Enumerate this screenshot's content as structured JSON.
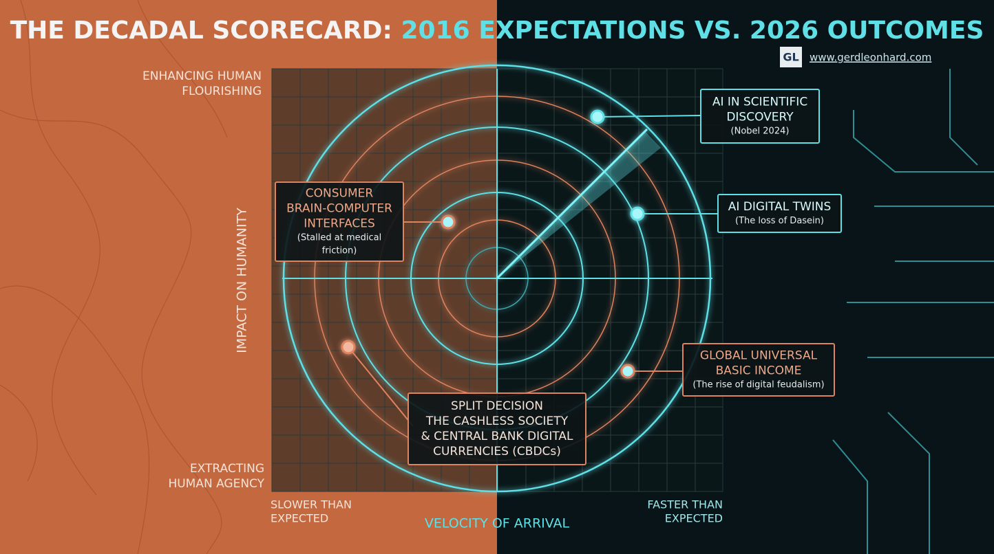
{
  "header": {
    "title_lead": "THE DECADAL SCORECARD:",
    "title_accent": "2016 EXPECTATIONS VS. 2026 OUTCOMES",
    "logo": "GL",
    "url": "www.gerdleonhard.com"
  },
  "axes": {
    "y_title": "IMPACT ON HUMANITY",
    "y_top": [
      "ENHANCING HUMAN",
      "FLOURISHING"
    ],
    "y_bottom": [
      "EXTRACTING",
      "HUMAN AGENCY"
    ],
    "x_title": "VELOCITY OF ARRIVAL",
    "x_left": [
      "SLOWER THAN",
      "EXPECTED"
    ],
    "x_right": [
      "FASTER THAN",
      "EXPECTED"
    ]
  },
  "nodes": [
    {
      "title": [
        "AI IN SCIENTIFIC",
        "DISCOVERY"
      ],
      "note": [
        "(Nobel 2024)"
      ]
    },
    {
      "title": [
        "AI DIGITAL TWINS"
      ],
      "note": [
        "(The loss of Dasein)"
      ]
    },
    {
      "title": [
        "CONSUMER",
        "BRAIN-COMPUTER",
        "INTERFACES"
      ],
      "note": [
        "(Stalled at medical",
        "friction)"
      ]
    },
    {
      "title": [
        "GLOBAL UNIVERSAL",
        "BASIC INCOME"
      ],
      "note": [
        "(The rise of digital feudalism)"
      ]
    },
    {
      "title": [
        "SPLIT DECISION",
        "THE CASHLESS SOCIETY",
        "& CENTRAL BANK DIGITAL",
        "CURRENCIES (CBDCs)"
      ],
      "note": []
    }
  ]
}
